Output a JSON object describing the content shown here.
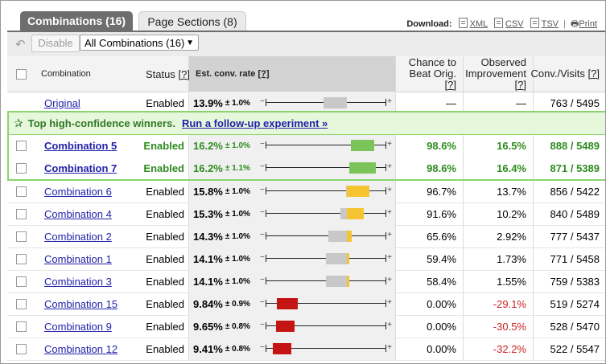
{
  "tabs": [
    {
      "label": "Combinations (16)"
    },
    {
      "label": "Page Sections (8)"
    }
  ],
  "download": {
    "label": "Download:",
    "xml": "XML",
    "csv": "CSV",
    "tsv": "TSV",
    "separator": "|",
    "print": "Print"
  },
  "toolbar": {
    "undo_icon": "undo-arrow-icon",
    "disable_label": "Disable",
    "filter_value": "All Combinations (16)",
    "arrow": "▼"
  },
  "headers": {
    "combination": "Combination",
    "status": "Status",
    "help": "[?]",
    "rate": "Est. conv. rate",
    "chance_line1": "Chance to",
    "chance_line2": "Beat Orig.",
    "improvement_line1": "Observed",
    "improvement_line2": "Improvement",
    "visits": "Conv./Visits"
  },
  "banner": {
    "text": "Top high-confidence winners.",
    "link": "Run a follow-up experiment »",
    "icon": "star-icon"
  },
  "colors": {
    "green": "#7cc45a",
    "yellow": "#f5c431",
    "red": "#c41414",
    "grey": "#c8c8c8"
  },
  "rows": [
    {
      "name": "Original",
      "status": "Enabled",
      "rate": "13.9%",
      "pm": "± 1.0%",
      "chance": "—",
      "improvement": "—",
      "visits": "763 / 5495",
      "kind": "original",
      "lo": 12.9,
      "hi": 14.9
    },
    {
      "name": "Combination 5",
      "status": "Enabled",
      "rate": "16.2%",
      "pm": "± 1.0%",
      "chance": "98.6%",
      "improvement": "16.5%",
      "visits": "888 / 5489",
      "kind": "winner",
      "lo": 15.2,
      "hi": 17.2
    },
    {
      "name": "Combination 7",
      "status": "Enabled",
      "rate": "16.2%",
      "pm": "± 1.1%",
      "chance": "98.6%",
      "improvement": "16.4%",
      "visits": "871 / 5389",
      "kind": "winner",
      "lo": 15.1,
      "hi": 17.3
    },
    {
      "name": "Combination 6",
      "status": "Enabled",
      "rate": "15.8%",
      "pm": "± 1.0%",
      "chance": "96.7%",
      "improvement": "13.7%",
      "visits": "856 / 5422",
      "kind": "yellow",
      "lo": 14.8,
      "hi": 16.8
    },
    {
      "name": "Combination 4",
      "status": "Enabled",
      "rate": "15.3%",
      "pm": "± 1.0%",
      "chance": "91.6%",
      "improvement": "10.2%",
      "visits": "840 / 5489",
      "kind": "yellow",
      "lo": 14.3,
      "hi": 16.3
    },
    {
      "name": "Combination 2",
      "status": "Enabled",
      "rate": "14.3%",
      "pm": "± 1.0%",
      "chance": "65.6%",
      "improvement": "2.92%",
      "visits": "777 / 5437",
      "kind": "yellow",
      "lo": 13.3,
      "hi": 15.3
    },
    {
      "name": "Combination 1",
      "status": "Enabled",
      "rate": "14.1%",
      "pm": "± 1.0%",
      "chance": "59.4%",
      "improvement": "1.73%",
      "visits": "771 / 5458",
      "kind": "yellow",
      "lo": 13.1,
      "hi": 15.1
    },
    {
      "name": "Combination 3",
      "status": "Enabled",
      "rate": "14.1%",
      "pm": "± 1.0%",
      "chance": "58.4%",
      "improvement": "1.55%",
      "visits": "759 / 5383",
      "kind": "yellow",
      "lo": 13.1,
      "hi": 15.1
    },
    {
      "name": "Combination 15",
      "status": "Enabled",
      "rate": "9.84%",
      "pm": "± 0.9%",
      "chance": "0.00%",
      "improvement": "-29.1%",
      "visits": "519 / 5274",
      "kind": "red",
      "lo": 8.94,
      "hi": 10.74
    },
    {
      "name": "Combination 9",
      "status": "Enabled",
      "rate": "9.65%",
      "pm": "± 0.8%",
      "chance": "0.00%",
      "improvement": "-30.5%",
      "visits": "528 / 5470",
      "kind": "red",
      "lo": 8.85,
      "hi": 10.45
    },
    {
      "name": "Combination 12",
      "status": "Enabled",
      "rate": "9.41%",
      "pm": "± 0.8%",
      "chance": "0.00%",
      "improvement": "-32.2%",
      "visits": "522 / 5547",
      "kind": "red",
      "lo": 8.61,
      "hi": 10.21
    }
  ]
}
